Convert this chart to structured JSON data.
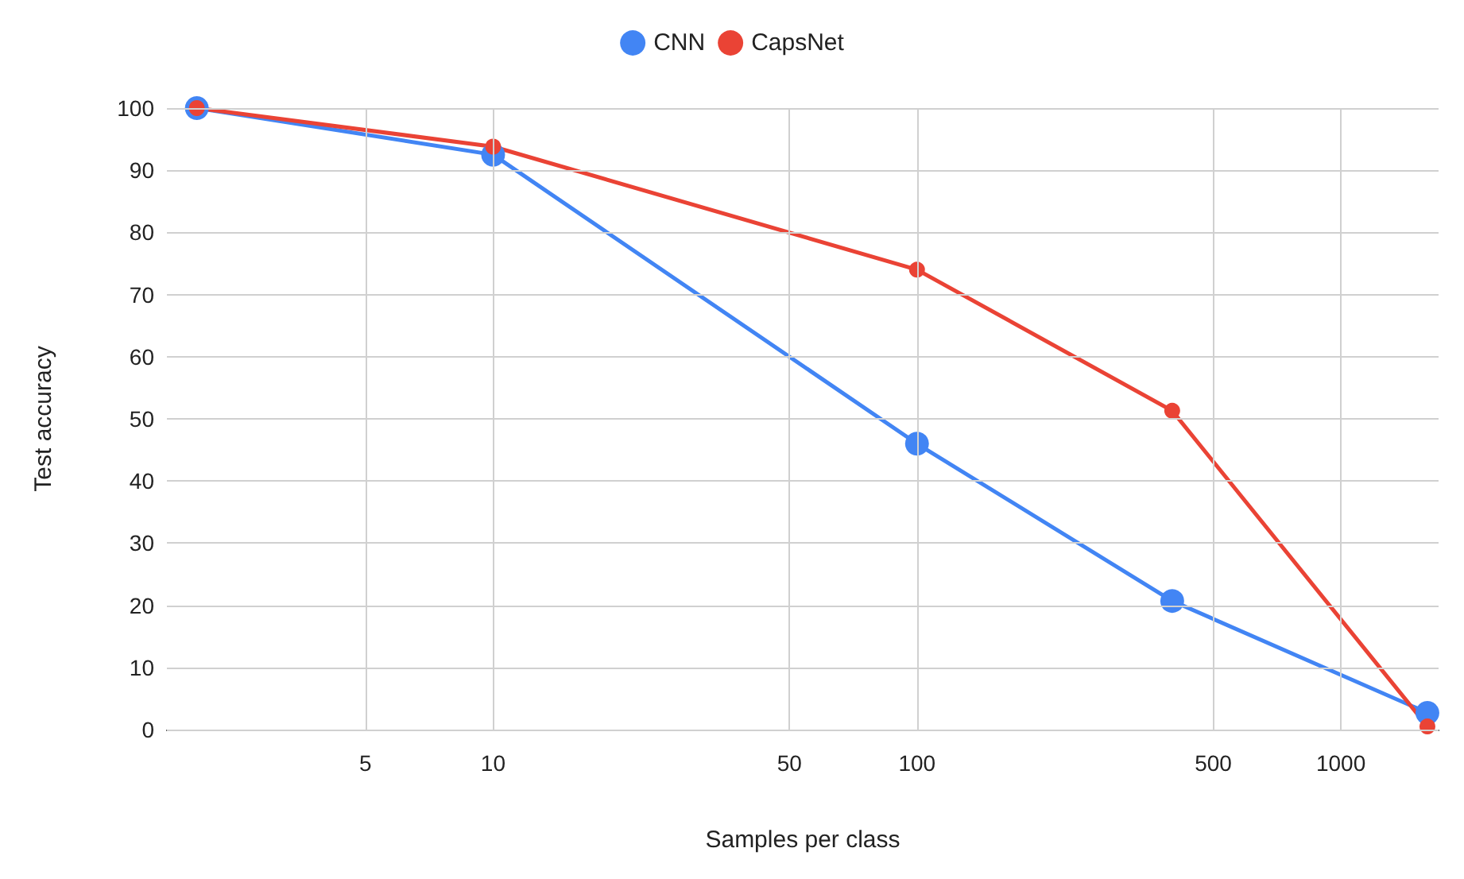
{
  "chart_data": {
    "type": "line",
    "xlabel": "Samples per class",
    "ylabel": "Test accuracy",
    "log": "x",
    "x": [
      2,
      10,
      100,
      400,
      1600
    ],
    "series": [
      {
        "name": "CNN",
        "color": "#4285f4",
        "values": [
          100,
          92.5,
          46,
          20.7,
          2.7
        ]
      },
      {
        "name": "CapsNet",
        "color": "#ea4335",
        "values": [
          100,
          93.8,
          74,
          51.3,
          0.5
        ]
      }
    ],
    "xlim": [
      1.7,
      1700
    ],
    "xticks": [
      5,
      10,
      50,
      100,
      500,
      1000
    ],
    "ylim": [
      0,
      100
    ],
    "yticks": [
      0,
      10,
      20,
      30,
      40,
      50,
      60,
      70,
      80,
      90,
      100
    ],
    "grid": true,
    "legend": "top",
    "marker": "circle",
    "line_style": "solid"
  }
}
